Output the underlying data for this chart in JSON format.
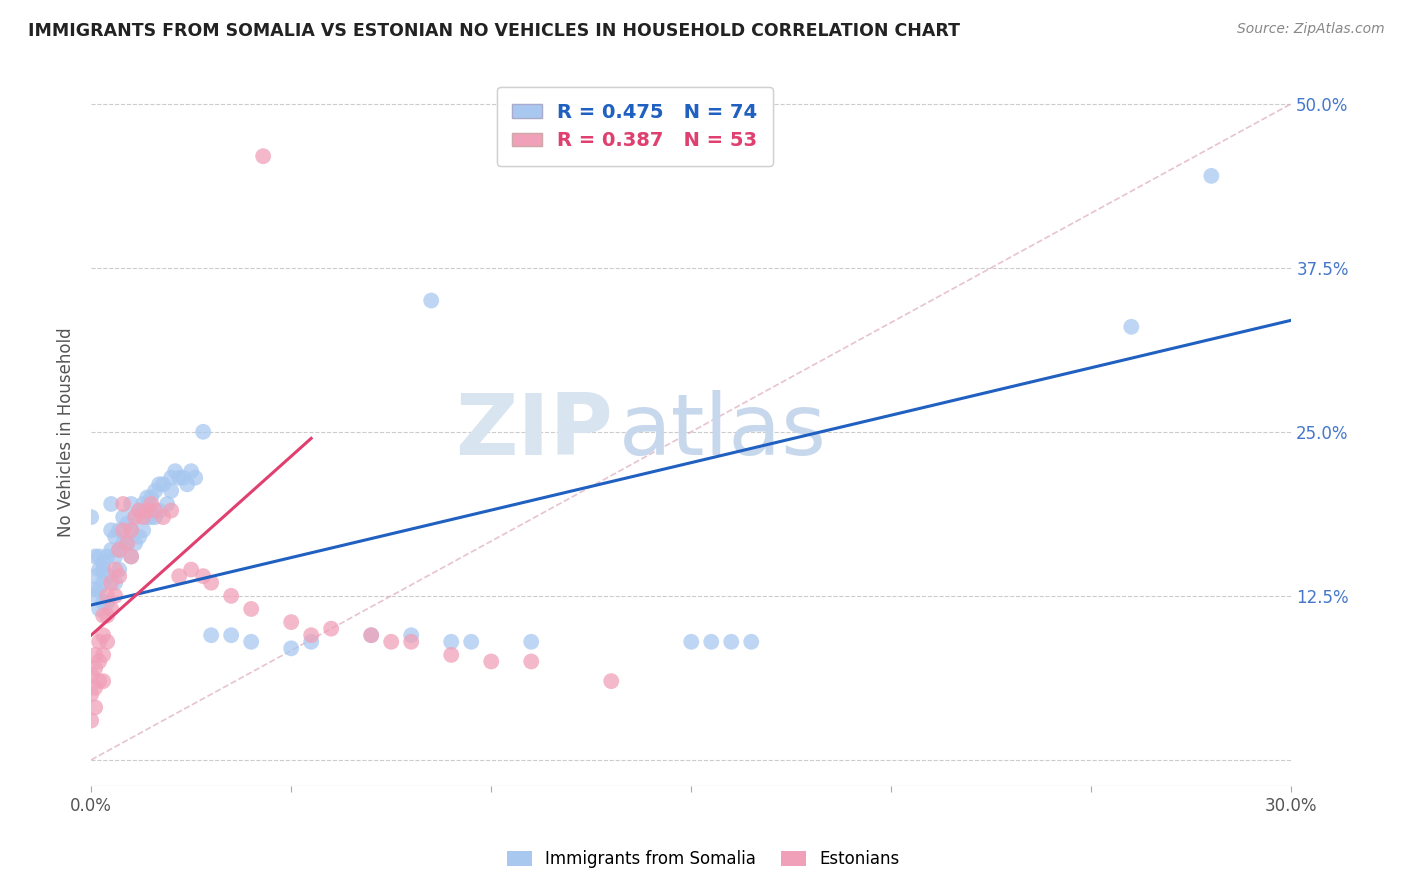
{
  "title": "IMMIGRANTS FROM SOMALIA VS ESTONIAN NO VEHICLES IN HOUSEHOLD CORRELATION CHART",
  "source": "Source: ZipAtlas.com",
  "ylabel": "No Vehicles in Household",
  "xlim": [
    0.0,
    0.3
  ],
  "ylim": [
    -0.02,
    0.52
  ],
  "xticks": [
    0.0,
    0.05,
    0.1,
    0.15,
    0.2,
    0.25,
    0.3
  ],
  "xticklabels": [
    "0.0%",
    "",
    "",
    "",
    "",
    "",
    "30.0%"
  ],
  "yticks_right": [
    0.125,
    0.25,
    0.375,
    0.5
  ],
  "yticklabels_right": [
    "12.5%",
    "25.0%",
    "37.5%",
    "50.0%"
  ],
  "blue_R": 0.475,
  "blue_N": 74,
  "pink_R": 0.387,
  "pink_N": 53,
  "blue_color": "#a8c8f0",
  "pink_color": "#f0a0b8",
  "blue_line_color": "#2060c0",
  "pink_line_color": "#e04070",
  "legend_label_blue": "Immigrants from Somalia",
  "legend_label_pink": "Estonians",
  "watermark_zip": "ZIP",
  "watermark_atlas": "atlas",
  "blue_line_x": [
    0.0,
    0.3
  ],
  "blue_line_y": [
    0.118,
    0.335
  ],
  "pink_line_x": [
    0.0,
    0.055
  ],
  "pink_line_y": [
    0.095,
    0.245
  ],
  "diag_line_x": [
    0.0,
    0.3
  ],
  "diag_line_y": [
    0.0,
    0.5
  ],
  "grid_color": "#cccccc",
  "background_color": "#ffffff",
  "blue_scatter_x": [
    0.0,
    0.001,
    0.001,
    0.001,
    0.001,
    0.002,
    0.002,
    0.002,
    0.002,
    0.003,
    0.003,
    0.003,
    0.003,
    0.004,
    0.004,
    0.004,
    0.005,
    0.005,
    0.005,
    0.006,
    0.006,
    0.006,
    0.007,
    0.007,
    0.007,
    0.008,
    0.008,
    0.009,
    0.009,
    0.01,
    0.01,
    0.01,
    0.011,
    0.011,
    0.012,
    0.012,
    0.013,
    0.013,
    0.014,
    0.014,
    0.015,
    0.015,
    0.016,
    0.016,
    0.017,
    0.017,
    0.018,
    0.019,
    0.02,
    0.02,
    0.021,
    0.022,
    0.023,
    0.024,
    0.025,
    0.026,
    0.028,
    0.03,
    0.035,
    0.04,
    0.05,
    0.055,
    0.07,
    0.08,
    0.085,
    0.09,
    0.095,
    0.11,
    0.15,
    0.155,
    0.16,
    0.165,
    0.26,
    0.28
  ],
  "blue_scatter_y": [
    0.185,
    0.13,
    0.155,
    0.14,
    0.125,
    0.145,
    0.13,
    0.155,
    0.115,
    0.15,
    0.145,
    0.135,
    0.12,
    0.155,
    0.14,
    0.12,
    0.195,
    0.175,
    0.16,
    0.17,
    0.155,
    0.135,
    0.175,
    0.16,
    0.145,
    0.185,
    0.165,
    0.18,
    0.165,
    0.195,
    0.175,
    0.155,
    0.185,
    0.165,
    0.19,
    0.17,
    0.195,
    0.175,
    0.2,
    0.185,
    0.2,
    0.185,
    0.205,
    0.185,
    0.21,
    0.19,
    0.21,
    0.195,
    0.215,
    0.205,
    0.22,
    0.215,
    0.215,
    0.21,
    0.22,
    0.215,
    0.25,
    0.095,
    0.095,
    0.09,
    0.085,
    0.09,
    0.095,
    0.095,
    0.35,
    0.09,
    0.09,
    0.09,
    0.09,
    0.09,
    0.09,
    0.09,
    0.33,
    0.445
  ],
  "pink_scatter_x": [
    0.0,
    0.0,
    0.0,
    0.001,
    0.001,
    0.001,
    0.001,
    0.002,
    0.002,
    0.002,
    0.003,
    0.003,
    0.003,
    0.003,
    0.004,
    0.004,
    0.004,
    0.005,
    0.005,
    0.006,
    0.006,
    0.007,
    0.007,
    0.008,
    0.008,
    0.009,
    0.01,
    0.01,
    0.011,
    0.012,
    0.013,
    0.014,
    0.015,
    0.016,
    0.018,
    0.02,
    0.022,
    0.025,
    0.028,
    0.03,
    0.035,
    0.04,
    0.043,
    0.05,
    0.055,
    0.06,
    0.07,
    0.075,
    0.08,
    0.09,
    0.1,
    0.11,
    0.13
  ],
  "pink_scatter_y": [
    0.065,
    0.05,
    0.03,
    0.08,
    0.07,
    0.055,
    0.04,
    0.09,
    0.075,
    0.06,
    0.11,
    0.095,
    0.08,
    0.06,
    0.125,
    0.11,
    0.09,
    0.135,
    0.115,
    0.145,
    0.125,
    0.16,
    0.14,
    0.195,
    0.175,
    0.165,
    0.175,
    0.155,
    0.185,
    0.19,
    0.185,
    0.19,
    0.195,
    0.19,
    0.185,
    0.19,
    0.14,
    0.145,
    0.14,
    0.135,
    0.125,
    0.115,
    0.46,
    0.105,
    0.095,
    0.1,
    0.095,
    0.09,
    0.09,
    0.08,
    0.075,
    0.075,
    0.06
  ]
}
